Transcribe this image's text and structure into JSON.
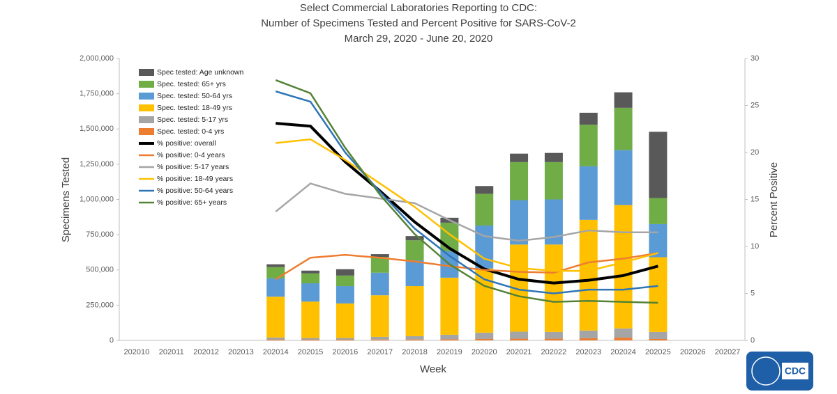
{
  "chart_data": {
    "type": "bar",
    "title": [
      "Select Commercial Laboratories Reporting to CDC:",
      "Number of Specimens Tested and Percent Positive for SARS-CoV-2",
      "March 29, 2020 - June 20, 2020"
    ],
    "x_label": "Week",
    "y_label": "Specimens Tested",
    "y2_label": "Percent Positive",
    "categories": [
      "202010",
      "202011",
      "202012",
      "202013",
      "202014",
      "202015",
      "202016",
      "202017",
      "202018",
      "202019",
      "202020",
      "202021",
      "202022",
      "202023",
      "202024",
      "202025",
      "202026",
      "202027"
    ],
    "ylim": [
      0,
      2000000
    ],
    "yticks": [
      0,
      {
        "value": 250000,
        "label": "250,000"
      },
      {
        "value": 500000,
        "label": "500,000"
      },
      {
        "value": 750000,
        "label": "750,000"
      },
      {
        "value": 1000000,
        "label": "1,000,000"
      },
      {
        "value": 1250000,
        "label": "1,250,000"
      },
      {
        "value": 1500000,
        "label": "1,500,000"
      },
      {
        "value": 1750000,
        "label": "1,750,000"
      },
      {
        "value": 2000000,
        "label": "2,000,000"
      }
    ],
    "y2lim": [
      0,
      30
    ],
    "y2ticks": [
      0,
      5,
      10,
      15,
      20,
      25,
      30
    ],
    "legend": "upper left",
    "series": [
      {
        "name": "Spec tested: Age unknown",
        "type": "bar",
        "color": "#595959",
        "values": [
          null,
          null,
          null,
          null,
          20000,
          20000,
          45000,
          20000,
          30000,
          35000,
          55000,
          60000,
          65000,
          85000,
          110000,
          470000,
          null,
          null
        ]
      },
      {
        "name": "Spec. tested: 65+ yrs",
        "type": "bar",
        "color": "#70ad47",
        "values": [
          null,
          null,
          null,
          null,
          80000,
          70000,
          75000,
          112000,
          142000,
          203000,
          225000,
          270000,
          265000,
          295000,
          300000,
          185000,
          null,
          null
        ]
      },
      {
        "name": "Spec. tested: 50-64 yrs",
        "type": "bar",
        "color": "#5b9bd5",
        "values": [
          null,
          null,
          null,
          null,
          130000,
          130000,
          123000,
          160000,
          183000,
          187000,
          305000,
          315000,
          320000,
          380000,
          390000,
          235000,
          null,
          null
        ]
      },
      {
        "name": "Spec. tested: 18-49 yrs",
        "type": "bar",
        "color": "#ffc000",
        "values": [
          null,
          null,
          null,
          null,
          290000,
          258000,
          245000,
          295000,
          355000,
          405000,
          455000,
          618000,
          620000,
          785000,
          875000,
          530000,
          null,
          null
        ]
      },
      {
        "name": "Spec. tested: 5-17 yrs",
        "type": "bar",
        "color": "#a5a5a5",
        "values": [
          null,
          null,
          null,
          null,
          15000,
          12000,
          12000,
          19000,
          24000,
          32000,
          45000,
          50000,
          48000,
          55000,
          65000,
          50000,
          null,
          null
        ]
      },
      {
        "name": "Spec. tested: 0-4 yrs",
        "type": "bar",
        "color": "#ed7d31",
        "values": [
          null,
          null,
          null,
          null,
          5000,
          5000,
          5000,
          6000,
          6000,
          8000,
          10000,
          12000,
          12000,
          15000,
          20000,
          10000,
          null,
          null
        ]
      },
      {
        "name": "% positive: overall",
        "type": "line",
        "axis": "y2",
        "color": "#000000",
        "line_width": 4,
        "values": [
          null,
          null,
          null,
          null,
          23.1,
          22.8,
          19.0,
          15.9,
          12.6,
          9.8,
          7.6,
          6.5,
          6.1,
          6.4,
          6.9,
          7.9,
          null,
          null
        ]
      },
      {
        "name": "% positive: 0-4 years",
        "type": "line",
        "axis": "y2",
        "color": "#ed7d31",
        "line_width": 2.5,
        "values": [
          null,
          null,
          null,
          null,
          6.5,
          8.8,
          9.1,
          8.8,
          8.4,
          7.9,
          7.5,
          7.3,
          7.2,
          8.3,
          8.7,
          9.3,
          null,
          null
        ]
      },
      {
        "name": "% positive: 5-17 years",
        "type": "line",
        "axis": "y2",
        "color": "#a5a5a5",
        "line_width": 2.5,
        "values": [
          null,
          null,
          null,
          null,
          13.7,
          16.7,
          15.6,
          15.1,
          14.6,
          12.8,
          11.1,
          10.6,
          11.0,
          11.7,
          11.5,
          11.5,
          null,
          null
        ]
      },
      {
        "name": "% positive: 18-49 years",
        "type": "line",
        "axis": "y2",
        "color": "#ffc000",
        "line_width": 2.5,
        "values": [
          null,
          null,
          null,
          null,
          21.0,
          21.4,
          19.2,
          16.7,
          14.2,
          11.3,
          8.7,
          7.7,
          7.4,
          7.4,
          8.3,
          9.3,
          null,
          null
        ]
      },
      {
        "name": "% positive: 50-64 years",
        "type": "line",
        "axis": "y2",
        "color": "#2e75b6",
        "line_width": 2.5,
        "values": [
          null,
          null,
          null,
          null,
          26.5,
          25.4,
          20.0,
          15.8,
          11.9,
          9.0,
          6.5,
          5.4,
          5.0,
          5.4,
          5.4,
          5.8,
          null,
          null
        ]
      },
      {
        "name": "% positive: 65+ years",
        "type": "line",
        "axis": "y2",
        "color": "#548235",
        "line_width": 2.5,
        "values": [
          null,
          null,
          null,
          null,
          27.7,
          26.3,
          20.5,
          15.5,
          11.3,
          8.1,
          5.8,
          4.7,
          4.1,
          4.2,
          4.1,
          4.0,
          null,
          null
        ]
      }
    ]
  },
  "logo_text": "CDC"
}
